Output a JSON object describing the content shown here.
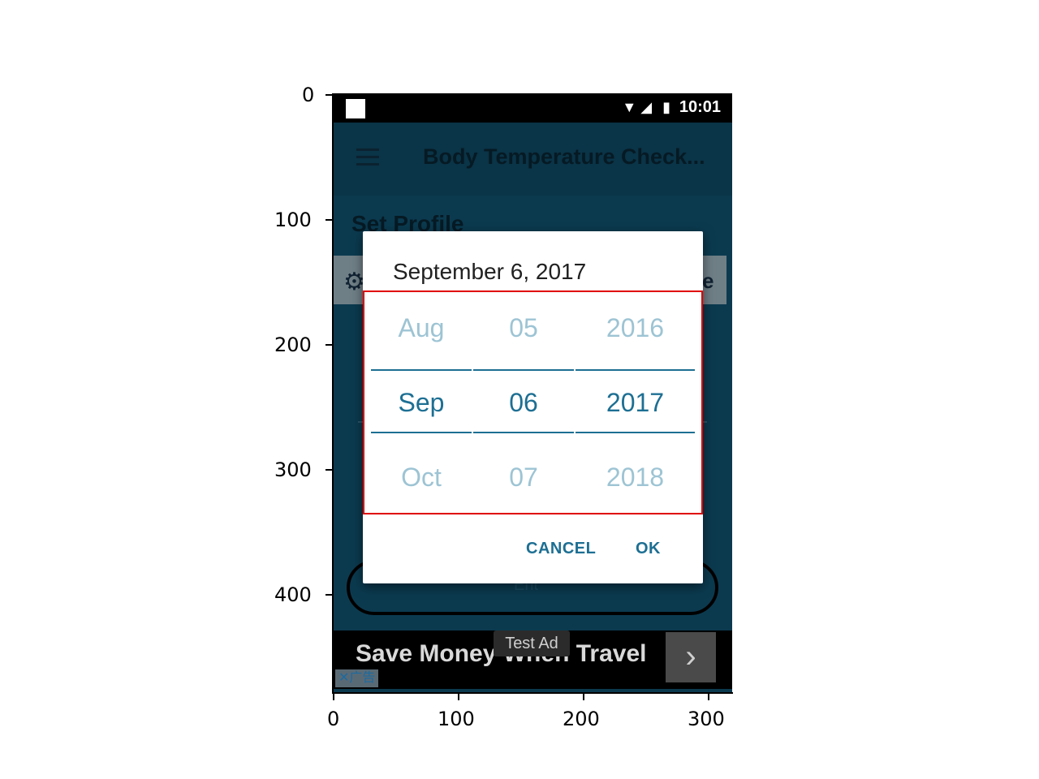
{
  "axes": {
    "y_ticks": [
      "0",
      "100",
      "200",
      "300",
      "400"
    ],
    "x_ticks": [
      "0",
      "100",
      "200",
      "300"
    ]
  },
  "statusbar": {
    "time": "10:01",
    "icons": [
      "wifi-icon",
      "signal-icon",
      "battery-charging-icon"
    ]
  },
  "appbar": {
    "title": "Body Temperature Check..."
  },
  "profile": {
    "heading": "Set Profile",
    "band_right_text": "e"
  },
  "save_pill": {
    "label": "Ent"
  },
  "dialog": {
    "header_date": "September 6, 2017",
    "picker": {
      "month": {
        "prev": "Aug",
        "current": "Sep",
        "next": "Oct"
      },
      "day": {
        "prev": "05",
        "current": "06",
        "next": "07"
      },
      "year": {
        "prev": "2016",
        "current": "2017",
        "next": "2018"
      }
    },
    "cancel_label": "CANCEL",
    "ok_label": "OK"
  },
  "ad": {
    "text": "Save Money When Travel",
    "test_badge": "Test Ad",
    "tag": "✕广告",
    "arrow": "›"
  },
  "colors": {
    "accent": "#1d6f93",
    "dim": "#9dc4d4",
    "screen_bg": "#0b3a4f",
    "highlight": "#e00000"
  }
}
